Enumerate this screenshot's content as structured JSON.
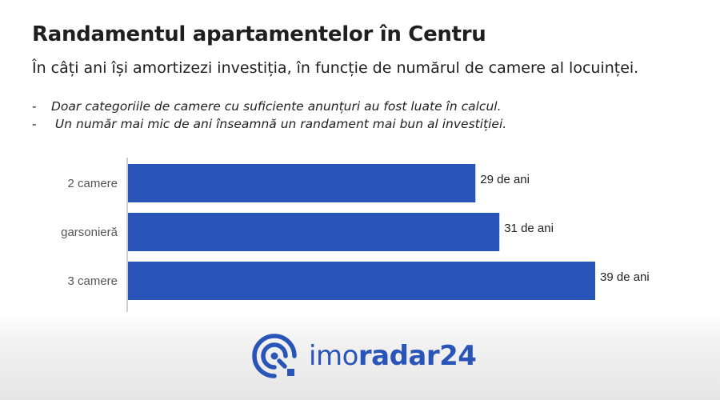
{
  "header": {
    "title": "Randamentul apartamentelor în Centru",
    "subtitle": "În câți ani își amortizezi investiția, în funcție de numărul de camere al locuinței.",
    "notes": [
      "Doar categoriile de camere cu suficiente anunțuri au fost luate în calcul.",
      " Un număr mai mic de ani înseamnă un randament mai bun al investiției."
    ],
    "note_marker": "-"
  },
  "chart_data": {
    "type": "bar",
    "orientation": "horizontal",
    "categories": [
      "2 camere",
      "garsonieră",
      "3 camere"
    ],
    "values": [
      29,
      31,
      39
    ],
    "data_labels": [
      "29 de ani",
      "31 de ani",
      "39 de ani"
    ],
    "xlim": [
      0,
      40
    ],
    "grid": false,
    "color": "#2a55b8"
  },
  "logo": {
    "text_light": "imo",
    "text_bold": "radar24",
    "color": "#2a55b8",
    "icon": "radar-icon"
  }
}
